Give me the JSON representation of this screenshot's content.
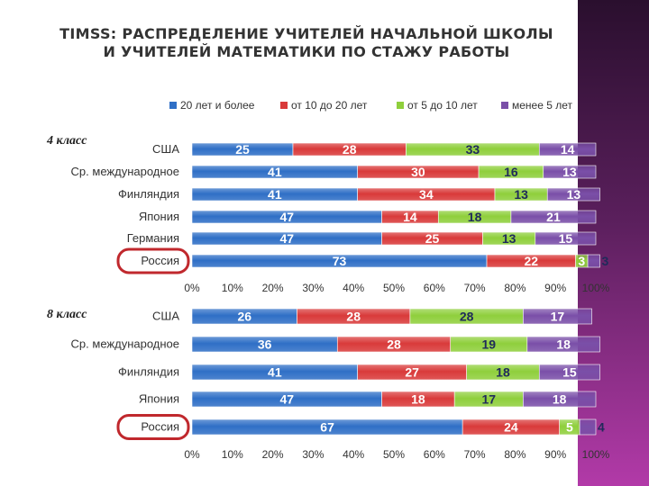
{
  "title": {
    "line1": "TIMSS: РАСПРЕДЕЛЕНИЕ УЧИТЕЛЕЙ НАЧАЛЬНОЙ ШКОЛЫ",
    "line2": "И УЧИТЕЛЕЙ МАТЕМАТИКИ ПО СТАЖУ РАБОТЫ"
  },
  "colors": {
    "series": [
      "#2f6fc6",
      "#d93a3a",
      "#8fcf3c",
      "#7a4fa8"
    ],
    "highlight": "#c0282d",
    "side_band": "#8a2d86"
  },
  "chart_data": [
    {
      "type": "bar",
      "stacked": true,
      "orientation": "horizontal",
      "panel_label": "4 класс",
      "categories": [
        "США",
        "Ср. международное",
        "Финляндия",
        "Япония",
        "Германия",
        "Россия"
      ],
      "series": [
        {
          "name": "20 лет и более",
          "values": [
            25,
            41,
            41,
            47,
            47,
            73
          ]
        },
        {
          "name": "от 10 до 20 лет",
          "values": [
            28,
            30,
            34,
            14,
            25,
            22
          ]
        },
        {
          "name": "от 5 до 10 лет",
          "values": [
            33,
            16,
            13,
            18,
            13,
            3
          ]
        },
        {
          "name": "менее 5 лет",
          "values": [
            14,
            13,
            13,
            21,
            15,
            3
          ]
        }
      ],
      "xlim": [
        0,
        100
      ],
      "x_ticks": [
        "0%",
        "10%",
        "20%",
        "30%",
        "40%",
        "50%",
        "60%",
        "70%",
        "80%",
        "90%",
        "100%"
      ],
      "highlighted_category": "Россия",
      "legend_position": "top"
    },
    {
      "type": "bar",
      "stacked": true,
      "orientation": "horizontal",
      "panel_label": "8 класс",
      "categories": [
        "США",
        "Ср. международное",
        "Финляндия",
        "Япония",
        "Россия"
      ],
      "series": [
        {
          "name": "20 лет и более",
          "values": [
            26,
            36,
            41,
            47,
            67
          ]
        },
        {
          "name": "от 10 до 20 лет",
          "values": [
            28,
            28,
            27,
            18,
            24
          ]
        },
        {
          "name": "от 5 до 10 лет",
          "values": [
            28,
            19,
            18,
            17,
            5
          ]
        },
        {
          "name": "менее 5 лет",
          "values": [
            17,
            18,
            15,
            18,
            4
          ]
        }
      ],
      "xlim": [
        0,
        100
      ],
      "x_ticks": [
        "0%",
        "10%",
        "20%",
        "30%",
        "40%",
        "50%",
        "60%",
        "70%",
        "80%",
        "90%",
        "100%"
      ],
      "highlighted_category": "Россия"
    }
  ]
}
